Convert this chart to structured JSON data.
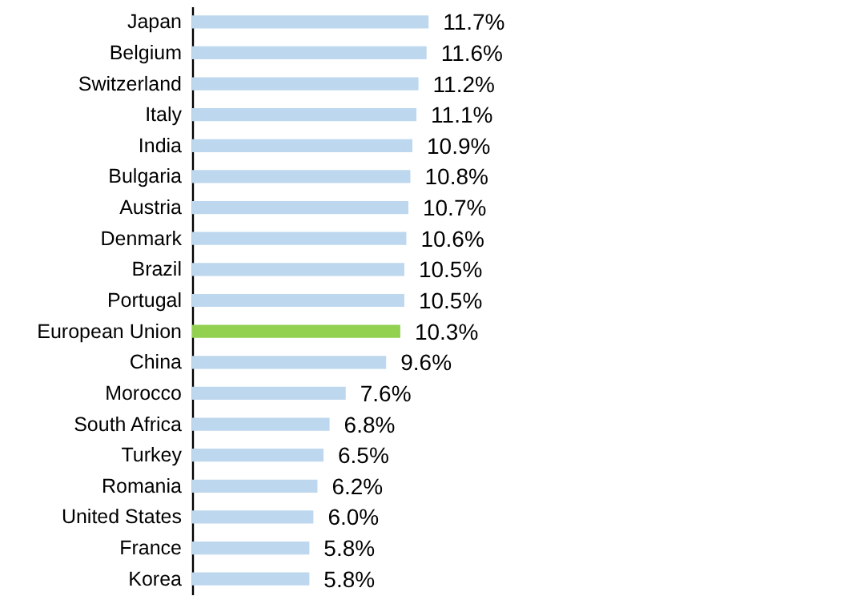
{
  "chart_data": {
    "type": "bar",
    "orientation": "horizontal",
    "categories": [
      "Japan",
      "Belgium",
      "Switzerland",
      "Italy",
      "India",
      "Bulgaria",
      "Austria",
      "Denmark",
      "Brazil",
      "Portugal",
      "European Union",
      "China",
      "Morocco",
      "South Africa",
      "Turkey",
      "Romania",
      "United States",
      "France",
      "Korea"
    ],
    "values": [
      11.7,
      11.6,
      11.2,
      11.1,
      10.9,
      10.8,
      10.7,
      10.6,
      10.5,
      10.5,
      10.3,
      9.6,
      7.6,
      6.8,
      6.5,
      6.2,
      6.0,
      5.8,
      5.8
    ],
    "colors": [
      "#bdd7ee",
      "#bdd7ee",
      "#bdd7ee",
      "#bdd7ee",
      "#bdd7ee",
      "#bdd7ee",
      "#bdd7ee",
      "#bdd7ee",
      "#bdd7ee",
      "#bdd7ee",
      "#92d050",
      "#bdd7ee",
      "#bdd7ee",
      "#bdd7ee",
      "#bdd7ee",
      "#bdd7ee",
      "#bdd7ee",
      "#bdd7ee",
      "#bdd7ee"
    ],
    "value_labels": [
      "11.7%",
      "11.6%",
      "11.2%",
      "11.1%",
      "10.9%",
      "10.8%",
      "10.7%",
      "10.6%",
      "10.5%",
      "10.5%",
      "10.3%",
      "9.6%",
      "7.6%",
      "6.8%",
      "6.5%",
      "6.2%",
      "6.0%",
      "5.8%",
      "5.8%"
    ]
  }
}
